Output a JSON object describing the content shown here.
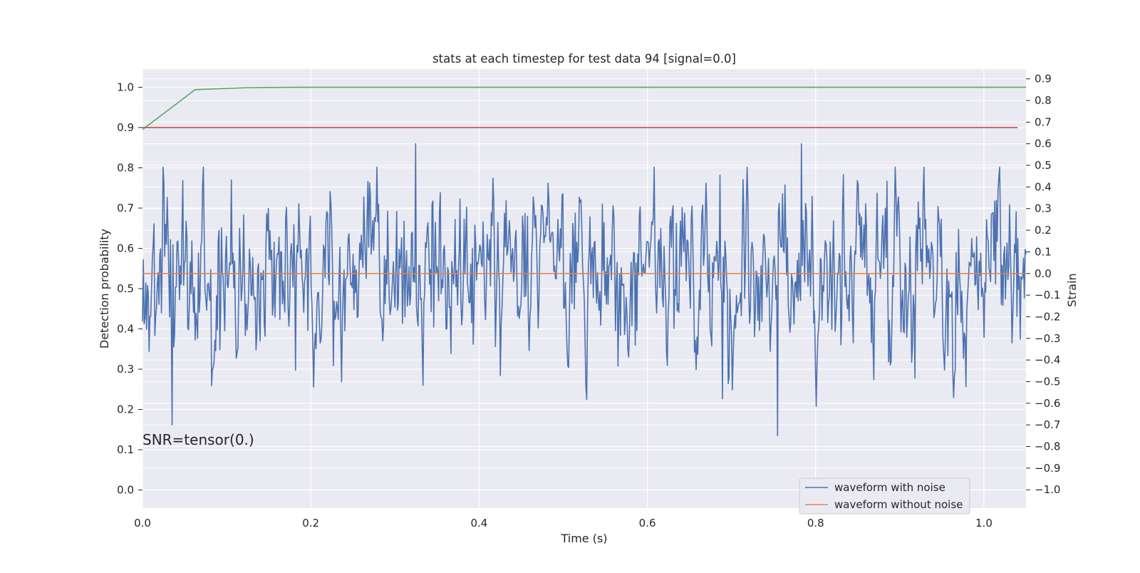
{
  "chart_data": {
    "type": "line",
    "title": "stats at each timestep for test data 94 [signal=0.0]",
    "xlabel": "Time (s)",
    "ylabel": "Detection probability",
    "y2label": "Strain",
    "xlim": [
      0.0,
      1.05
    ],
    "ylim": [
      -0.045,
      1.045
    ],
    "y2lim": [
      -1.085,
      0.945
    ],
    "x_ticks": [
      "0.0",
      "0.2",
      "0.4",
      "0.6",
      "0.8",
      "1.0"
    ],
    "x_tick_values": [
      0.0,
      0.2,
      0.4,
      0.6,
      0.8,
      1.0
    ],
    "y_ticks": [
      "0.0",
      "0.1",
      "0.2",
      "0.3",
      "0.4",
      "0.5",
      "0.6",
      "0.7",
      "0.8",
      "0.9",
      "1.0"
    ],
    "y_tick_values": [
      0.0,
      0.1,
      0.2,
      0.3,
      0.4,
      0.5,
      0.6,
      0.7,
      0.8,
      0.9,
      1.0
    ],
    "y2_ticks": [
      "−1.0",
      "−0.9",
      "−0.8",
      "−0.7",
      "−0.6",
      "−0.5",
      "−0.4",
      "−0.3",
      "−0.2",
      "−0.1",
      "0.0",
      "0.1",
      "0.2",
      "0.3",
      "0.4",
      "0.5",
      "0.6",
      "0.7",
      "0.8",
      "0.9"
    ],
    "y2_tick_values": [
      -1.0,
      -0.9,
      -0.8,
      -0.7,
      -0.6,
      -0.5,
      -0.4,
      -0.3,
      -0.2,
      -0.1,
      0.0,
      0.1,
      0.2,
      0.3,
      0.4,
      0.5,
      0.6,
      0.7,
      0.8,
      0.9
    ],
    "grid": true,
    "legend_position": "lower-right",
    "annotation": "SNR=tensor(0.)",
    "series": [
      {
        "name": "waveform with noise",
        "axis": "right",
        "color": "#4c72b0",
        "x_range": [
          0.0,
          1.05
        ],
        "y_range_observed": [
          -0.75,
          0.6
        ],
        "note_points": [
          {
            "x": 0.035,
            "y": -0.7
          },
          {
            "x": 0.325,
            "y": 0.6
          },
          {
            "x": 0.755,
            "y": -0.75
          },
          {
            "x": 0.783,
            "y": 0.6
          }
        ]
      },
      {
        "name": "waveform without noise",
        "axis": "right",
        "color": "#dd8452",
        "x": [
          0.0,
          1.05
        ],
        "y": [
          0.0,
          0.0
        ]
      },
      {
        "name": "",
        "axis": "left",
        "color": "#55a868",
        "x": [
          0.0,
          0.0625,
          0.125,
          0.1875,
          1.05
        ],
        "y": [
          0.895,
          0.994,
          0.999,
          1.0,
          1.0
        ]
      },
      {
        "name": "",
        "axis": "left",
        "color": "#c44e52",
        "x": [
          0.0,
          1.04
        ],
        "y": [
          0.9,
          0.9
        ]
      }
    ]
  }
}
